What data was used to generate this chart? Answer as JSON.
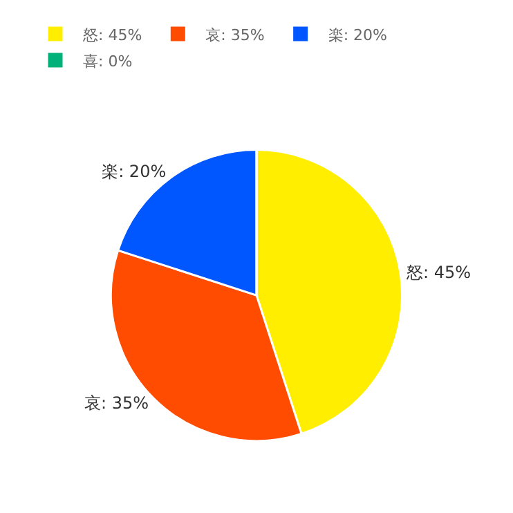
{
  "chart_data": {
    "type": "pie",
    "categories": [
      "怒: 45%",
      "哀: 35%",
      "楽: 20%",
      "喜: 0%"
    ],
    "values": [
      45,
      35,
      20,
      0
    ],
    "colors": [
      "#ffee00",
      "#ff4c00",
      "#0057ff",
      "#00b27a"
    ],
    "legend": "top left"
  }
}
